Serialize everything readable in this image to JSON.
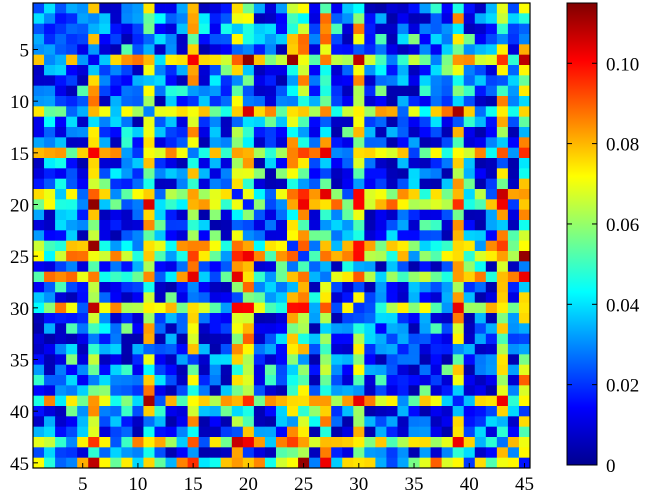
{
  "chart_data": {
    "type": "heatmap",
    "rows": 45,
    "cols": 45,
    "x_ticks": [
      5,
      10,
      15,
      20,
      25,
      30,
      35,
      40,
      45
    ],
    "y_ticks": [
      5,
      10,
      15,
      20,
      25,
      30,
      35,
      40,
      45
    ],
    "colorbar": {
      "colormap": "jet",
      "range": [
        0,
        0.115
      ],
      "ticks": [
        0,
        0.02,
        0.04,
        0.06,
        0.08,
        0.1
      ],
      "tick_labels": [
        "0",
        "0.02",
        "0.04",
        "0.06",
        "0.08",
        "0.10"
      ]
    },
    "highlight_lines": [
      6,
      11,
      15,
      19,
      20,
      24,
      25,
      27,
      30,
      39,
      43,
      45
    ],
    "symmetric": true,
    "title": "",
    "xlabel": "",
    "ylabel": ""
  }
}
